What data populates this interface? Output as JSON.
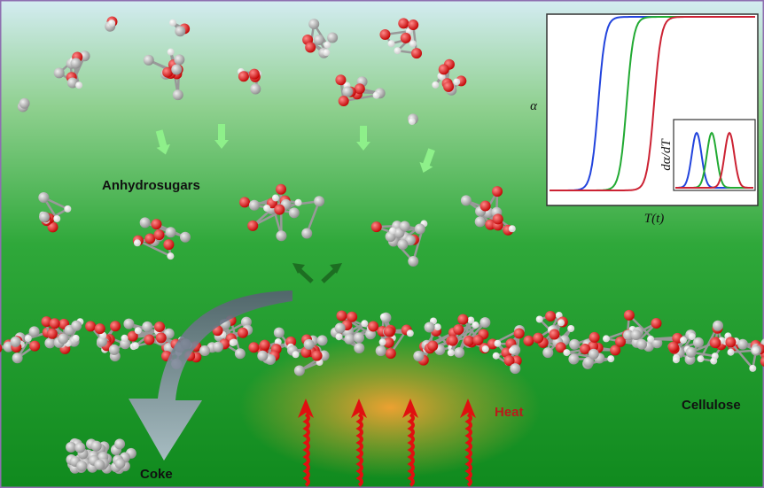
{
  "labels": {
    "anhydrosugars": "Anhydrosugars",
    "heat": "Heat",
    "cellulose": "Cellulose",
    "coke": "Coke"
  },
  "inset": {
    "y_axis": "α",
    "x_axis": "T(t)",
    "inner_y_axis": "dα/dT"
  }
}
